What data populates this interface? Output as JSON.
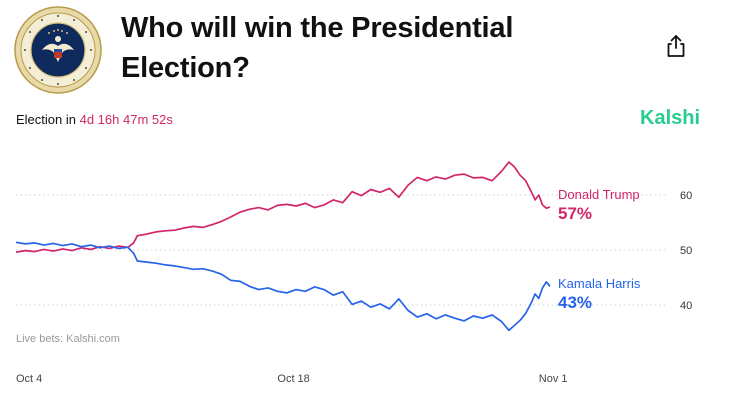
{
  "header": {
    "title_line1": "Who will win the Presidential",
    "title_line2": "Election?",
    "seal_name": "presidential-seal",
    "share_icon": "share-icon"
  },
  "countdown": {
    "label": "Election in",
    "time": "4d 16h 47m 52s"
  },
  "brand": {
    "name": "Kalshi",
    "color": "#28cc8e"
  },
  "footnote": "Live bets: Kalshi.com",
  "colors": {
    "trump": "#d1266a",
    "harris": "#2563eb",
    "grid": "#cfcfcf"
  },
  "chart_data": {
    "type": "line",
    "ylim": [
      30,
      70
    ],
    "yticks": [
      40,
      50,
      60
    ],
    "xticks": [
      {
        "label": "Oct 4",
        "day": 0
      },
      {
        "label": "Oct 18",
        "day": 14
      },
      {
        "label": "Nov 1",
        "day": 28
      }
    ],
    "xlim": [
      0,
      28.6
    ],
    "series": [
      {
        "name": "Donald Trump",
        "label_value": "57%",
        "color": "#d1266a",
        "points": [
          [
            0,
            49.6
          ],
          [
            0.5,
            49.9
          ],
          [
            1,
            49.7
          ],
          [
            1.5,
            50.1
          ],
          [
            2,
            49.8
          ],
          [
            2.5,
            50.2
          ],
          [
            3,
            49.9
          ],
          [
            3.5,
            50.4
          ],
          [
            4,
            50.1
          ],
          [
            4.5,
            50.6
          ],
          [
            5,
            50.3
          ],
          [
            5.5,
            50.7
          ],
          [
            6,
            50.5
          ],
          [
            6.3,
            51.3
          ],
          [
            6.5,
            52.6
          ],
          [
            7,
            52.9
          ],
          [
            7.5,
            53.3
          ],
          [
            8,
            53.5
          ],
          [
            8.5,
            53.6
          ],
          [
            9,
            54.0
          ],
          [
            9.5,
            54.3
          ],
          [
            10,
            54.1
          ],
          [
            10.5,
            54.6
          ],
          [
            11,
            55.2
          ],
          [
            11.5,
            56.0
          ],
          [
            12,
            56.9
          ],
          [
            12.5,
            57.4
          ],
          [
            13,
            57.7
          ],
          [
            13.5,
            57.3
          ],
          [
            14,
            58.1
          ],
          [
            14.5,
            58.3
          ],
          [
            15,
            58.0
          ],
          [
            15.5,
            58.5
          ],
          [
            16,
            57.7
          ],
          [
            16.5,
            58.2
          ],
          [
            17,
            59.1
          ],
          [
            17.5,
            58.6
          ],
          [
            18,
            60.6
          ],
          [
            18.5,
            59.9
          ],
          [
            19,
            61.0
          ],
          [
            19.5,
            60.5
          ],
          [
            20,
            61.2
          ],
          [
            20.5,
            59.6
          ],
          [
            21,
            61.8
          ],
          [
            21.5,
            63.2
          ],
          [
            22,
            62.6
          ],
          [
            22.5,
            63.3
          ],
          [
            23,
            62.9
          ],
          [
            23.5,
            63.6
          ],
          [
            24,
            63.8
          ],
          [
            24.5,
            63.1
          ],
          [
            25,
            63.2
          ],
          [
            25.5,
            62.6
          ],
          [
            26,
            64.3
          ],
          [
            26.4,
            66.0
          ],
          [
            26.7,
            65.1
          ],
          [
            27,
            63.6
          ],
          [
            27.3,
            62.6
          ],
          [
            27.6,
            60.6
          ],
          [
            27.8,
            59.1
          ],
          [
            28,
            60.0
          ],
          [
            28.2,
            58.2
          ],
          [
            28.4,
            57.6
          ],
          [
            28.6,
            57.8
          ]
        ]
      },
      {
        "name": "Kamala Harris",
        "label_value": "43%",
        "color": "#2563eb",
        "points": [
          [
            0,
            51.4
          ],
          [
            0.5,
            51.1
          ],
          [
            1,
            51.3
          ],
          [
            1.5,
            50.9
          ],
          [
            2,
            51.2
          ],
          [
            2.5,
            50.8
          ],
          [
            3,
            51.1
          ],
          [
            3.5,
            50.6
          ],
          [
            4,
            50.9
          ],
          [
            4.5,
            50.4
          ],
          [
            5,
            50.7
          ],
          [
            5.5,
            50.3
          ],
          [
            6,
            50.5
          ],
          [
            6.3,
            49.4
          ],
          [
            6.5,
            48.0
          ],
          [
            7,
            47.8
          ],
          [
            7.5,
            47.6
          ],
          [
            8,
            47.3
          ],
          [
            8.5,
            47.1
          ],
          [
            9,
            46.8
          ],
          [
            9.5,
            46.5
          ],
          [
            10,
            46.6
          ],
          [
            10.5,
            46.2
          ],
          [
            11,
            45.6
          ],
          [
            11.5,
            44.5
          ],
          [
            12,
            44.3
          ],
          [
            12.5,
            43.4
          ],
          [
            13,
            42.8
          ],
          [
            13.5,
            43.1
          ],
          [
            14,
            42.5
          ],
          [
            14.5,
            42.2
          ],
          [
            15,
            42.8
          ],
          [
            15.5,
            42.5
          ],
          [
            16,
            43.3
          ],
          [
            16.5,
            42.8
          ],
          [
            17,
            41.8
          ],
          [
            17.5,
            42.4
          ],
          [
            18,
            40.1
          ],
          [
            18.5,
            40.7
          ],
          [
            19,
            39.6
          ],
          [
            19.5,
            40.2
          ],
          [
            20,
            39.3
          ],
          [
            20.5,
            41.1
          ],
          [
            21,
            39.0
          ],
          [
            21.5,
            37.8
          ],
          [
            22,
            38.4
          ],
          [
            22.5,
            37.5
          ],
          [
            23,
            38.2
          ],
          [
            23.5,
            37.6
          ],
          [
            24,
            37.1
          ],
          [
            24.5,
            38.0
          ],
          [
            25,
            37.6
          ],
          [
            25.5,
            38.2
          ],
          [
            26,
            37.0
          ],
          [
            26.4,
            35.4
          ],
          [
            26.7,
            36.3
          ],
          [
            27,
            37.2
          ],
          [
            27.3,
            38.5
          ],
          [
            27.6,
            40.4
          ],
          [
            27.8,
            42.0
          ],
          [
            28,
            41.2
          ],
          [
            28.2,
            43.1
          ],
          [
            28.4,
            44.2
          ],
          [
            28.6,
            43.4
          ]
        ]
      }
    ]
  }
}
